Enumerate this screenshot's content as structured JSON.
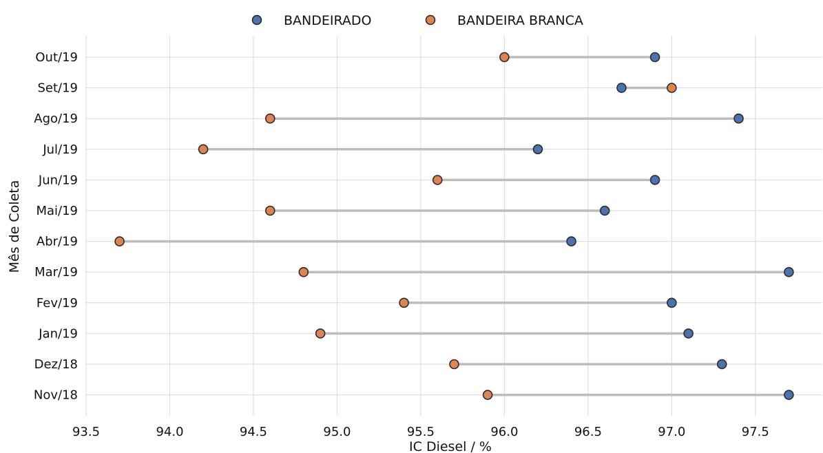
{
  "chart_data": {
    "type": "scatter",
    "xlabel": "IC Diesel / %",
    "ylabel": "Mês de Coleta",
    "xlim": [
      93.5,
      97.9
    ],
    "xticks": [
      "93.5",
      "94.0",
      "94.5",
      "95.0",
      "95.5",
      "96.0",
      "96.5",
      "97.0",
      "97.5"
    ],
    "grid": true,
    "legend_position": "top-center",
    "categories": [
      "Out/19",
      "Set/19",
      "Ago/19",
      "Jul/19",
      "Jun/19",
      "Mai/19",
      "Abr/19",
      "Mar/19",
      "Fev/19",
      "Jan/19",
      "Dez/18",
      "Nov/18"
    ],
    "series": [
      {
        "name": "BANDEIRADO",
        "color": "#4c72b0",
        "values": [
          96.9,
          96.7,
          97.4,
          96.2,
          96.9,
          96.6,
          96.4,
          97.7,
          97.0,
          97.1,
          97.3,
          97.7
        ]
      },
      {
        "name": "BANDEIRA BRANCA",
        "color": "#dd8452",
        "values": [
          96.0,
          97.0,
          94.6,
          94.2,
          95.6,
          94.6,
          93.7,
          94.8,
          95.4,
          94.9,
          95.7,
          95.9
        ]
      }
    ],
    "connector_color": "#bdbdbd"
  }
}
